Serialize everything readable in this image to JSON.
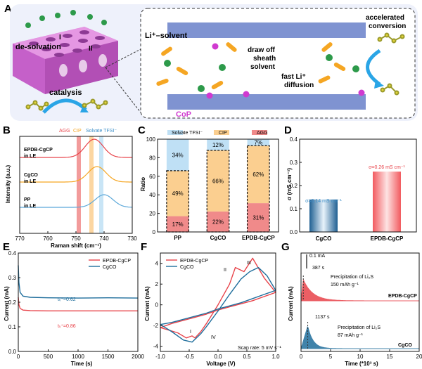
{
  "panels": {
    "a": {
      "label": "A"
    },
    "b": {
      "label": "B"
    },
    "c": {
      "label": "C"
    },
    "d": {
      "label": "D"
    },
    "e": {
      "label": "E"
    },
    "f": {
      "label": "F"
    },
    "g": {
      "label": "G"
    }
  },
  "schematic": {
    "desolvation": "de-solvation",
    "step_i": "I",
    "step_ii": "II",
    "catalysis": "catalysis",
    "li_solvent": "Li⁺–solvent",
    "draw_off": [
      "draw off",
      "sheath",
      "solvent"
    ],
    "fast_li": [
      "fast Li⁺",
      "diffusion"
    ],
    "cop": "CoP",
    "accelerated": [
      "accelerated",
      "conversion"
    ]
  },
  "colors": {
    "red": "#e8434a",
    "blue": "#1f6e9c",
    "orange": "#f5a623",
    "lightblue": "#bfe0f5",
    "salmon": "#f08a8a",
    "peach": "#fbcf90",
    "pink_membrane": "#d96fd6",
    "plate": "#7f93d1"
  },
  "texts": {
    "b_legend": [
      "AGG",
      "CIP",
      "Solvate TFSI⁻"
    ],
    "b_labels": [
      "EPDB-CgCP",
      "in LE",
      "CgCO",
      "in LE",
      "PP",
      "in LE"
    ],
    "c_legend": [
      "Solvate TFSI⁻",
      "CIP",
      "AGG"
    ],
    "d_annot": [
      "σ=0.14 mS cm⁻¹",
      "σ=0.26 mS cm⁻¹"
    ],
    "e_annot": [
      "tₗᵢ⁺=0.62",
      "tₗᵢ⁺=0.86"
    ],
    "f_peaks": [
      "I",
      "II",
      "III",
      "IV"
    ],
    "f_scan": "Scan rate: 5 mV s⁻¹",
    "g_scale": "0.1 mA",
    "g_times": [
      "387 s",
      "1137 s"
    ],
    "g_precip": [
      "Precipitation of Li₂S",
      "150 mAh g⁻¹",
      "Precipitation of Li₂S",
      "87 mAh g⁻¹"
    ],
    "g_series": [
      "EPDB-CgCP",
      "CgCO"
    ]
  },
  "chart_data": [
    {
      "id": "b",
      "type": "line",
      "xlabel": "Raman shift (cm⁻¹)",
      "ylabel": "Intensity (a.u.)",
      "xlim": [
        770,
        730
      ],
      "x_ticks": [
        770,
        760,
        750,
        740,
        730
      ],
      "bands": [
        {
          "name": "AGG",
          "center": 749,
          "color": "#f08a8a"
        },
        {
          "name": "CIP",
          "center": 744.5,
          "color": "#fbcf90"
        },
        {
          "name": "Solvate TFSI⁻",
          "center": 741,
          "color": "#bfe0f5"
        }
      ],
      "series": [
        {
          "name": "EPDB-CgCP in LE",
          "peak": 743.5,
          "color": "#e8434a"
        },
        {
          "name": "CgCO in LE",
          "peak": 742.5,
          "color": "#f5a623"
        },
        {
          "name": "PP in LE",
          "peak": 740,
          "color": "#5aa7d9"
        }
      ]
    },
    {
      "id": "c",
      "type": "bar",
      "ylabel": "Ratio",
      "ylim": [
        0,
        100
      ],
      "y_ticks": [
        0,
        20,
        40,
        60,
        80,
        100
      ],
      "categories": [
        "PP",
        "CgCO",
        "EPDB-CgCP"
      ],
      "series": [
        {
          "name": "AGG",
          "values": [
            17,
            22,
            31
          ],
          "color": "#f08a8a"
        },
        {
          "name": "CIP",
          "values": [
            49,
            66,
            62
          ],
          "color": "#fbcf90"
        },
        {
          "name": "Solvate TFSI⁻",
          "values": [
            34,
            12,
            7
          ],
          "color": "#bfe0f5"
        }
      ],
      "labels": [
        "17%",
        "49%",
        "34%",
        "22%",
        "66%",
        "12%",
        "31%",
        "62%",
        "7%"
      ]
    },
    {
      "id": "d",
      "type": "bar",
      "ylabel": "σ (mS cm⁻¹)",
      "ylim": [
        0,
        0.4
      ],
      "y_ticks": [
        0,
        0.1,
        0.2,
        0.3,
        0.4
      ],
      "y_tick_labels": [
        "0.0",
        "0.1",
        "0.2",
        "0.3",
        "0.4"
      ],
      "categories": [
        "CgCO",
        "EPDB-CgCP"
      ],
      "values": [
        0.14,
        0.26
      ]
    },
    {
      "id": "e",
      "type": "line",
      "xlabel": "Time (s)",
      "ylabel": "Current (mA)",
      "xlim": [
        0,
        2000
      ],
      "ylim": [
        0,
        0.4
      ],
      "x_ticks": [
        0,
        500,
        1000,
        1500,
        2000
      ],
      "y_ticks": [
        0,
        0.1,
        0.2,
        0.3,
        0.4
      ],
      "y_tick_labels": [
        "0.0",
        "0.1",
        "0.2",
        "0.3",
        "0.4"
      ],
      "series": [
        {
          "name": "EPDB-CgCP",
          "color": "#e8434a",
          "x": [
            0,
            10,
            30,
            80,
            200,
            500,
            1000,
            1500,
            2000
          ],
          "y": [
            0.22,
            0.19,
            0.175,
            0.168,
            0.166,
            0.165,
            0.165,
            0.165,
            0.165
          ]
        },
        {
          "name": "CgCO",
          "color": "#1f6e9c",
          "x": [
            0,
            10,
            30,
            80,
            200,
            500,
            1000,
            1500,
            2000
          ],
          "y": [
            0.35,
            0.28,
            0.24,
            0.225,
            0.22,
            0.218,
            0.217,
            0.218,
            0.217
          ]
        }
      ]
    },
    {
      "id": "f",
      "type": "line",
      "xlabel": "Voltage (V)",
      "ylabel": "Current (mA)",
      "xlim": [
        -1.0,
        1.0
      ],
      "ylim": [
        -4.5,
        5
      ],
      "x_ticks": [
        -1.0,
        -0.5,
        0.0,
        0.5,
        1.0
      ],
      "x_tick_labels": [
        "-1.0",
        "-0.5",
        "0.0",
        "0.5",
        "1.0"
      ],
      "y_ticks": [
        -4,
        -2,
        0,
        2,
        4
      ],
      "series": [
        {
          "name": "EPDB-CgCP",
          "color": "#e8434a",
          "x": [
            -1.0,
            -0.7,
            -0.55,
            -0.45,
            -0.4,
            -0.3,
            -0.2,
            0.0,
            0.2,
            0.3,
            0.45,
            0.6,
            0.8,
            1.0,
            0.8,
            0.6,
            0.4,
            0.2,
            0.0,
            -0.2,
            -0.4,
            -0.6,
            -0.8,
            -1.0
          ],
          "y": [
            -2.2,
            -2.7,
            -3.2,
            -3.0,
            -3.2,
            -2.6,
            -1.8,
            0.0,
            2.0,
            3.6,
            3.2,
            4.5,
            2.6,
            1.2,
            0.8,
            0.4,
            0.1,
            -0.2,
            -0.5,
            -0.9,
            -1.2,
            -1.5,
            -1.8,
            -2.2
          ]
        },
        {
          "name": "CgCO",
          "color": "#1f6e9c",
          "x": [
            -1.0,
            -0.8,
            -0.6,
            -0.45,
            -0.3,
            -0.2,
            0.0,
            0.2,
            0.4,
            0.55,
            0.7,
            0.85,
            1.0,
            0.8,
            0.6,
            0.4,
            0.2,
            0.0,
            -0.2,
            -0.4,
            -0.6,
            -0.8,
            -1.0
          ],
          "y": [
            -1.9,
            -2.6,
            -3.4,
            -3.6,
            -2.8,
            -2.1,
            -0.6,
            1.0,
            2.5,
            3.2,
            3.6,
            2.8,
            1.4,
            1.0,
            0.6,
            0.2,
            -0.1,
            -0.4,
            -0.8,
            -1.1,
            -1.4,
            -1.7,
            -1.9
          ]
        }
      ]
    },
    {
      "id": "g",
      "type": "line",
      "xlabel": "Time (*10³ s)",
      "ylabel": "Current (mA)",
      "xlim": [
        0,
        20
      ],
      "x_ticks": [
        0,
        5,
        10,
        15,
        20
      ],
      "series": [
        {
          "name": "EPDB-CgCP",
          "color": "#e8434a",
          "peak_time": 0.387
        },
        {
          "name": "CgCO",
          "color": "#1f6e9c",
          "peak_time": 1.137
        }
      ]
    }
  ]
}
